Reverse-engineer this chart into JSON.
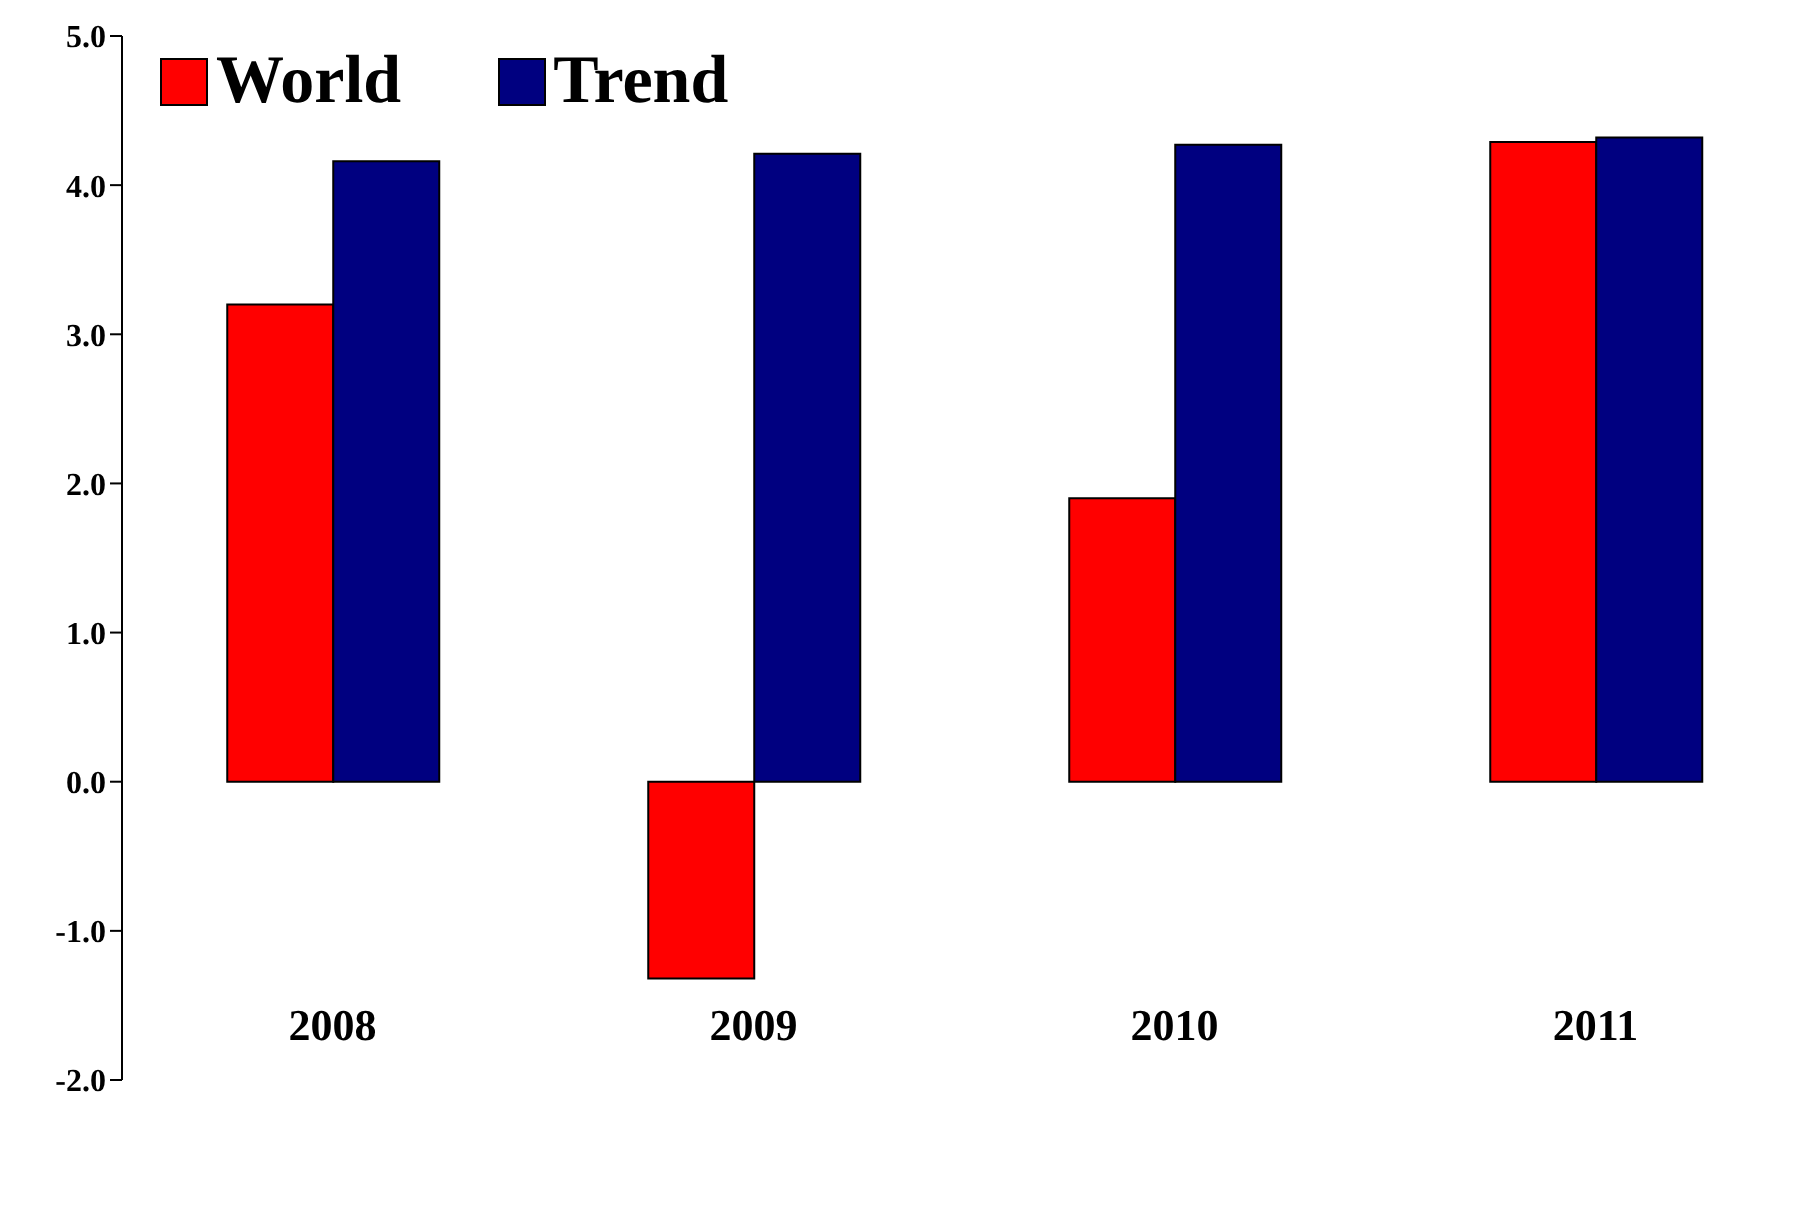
{
  "chart_data": {
    "type": "bar",
    "categories": [
      "2008",
      "2009",
      "2010",
      "2011"
    ],
    "series": [
      {
        "name": "World",
        "color": "#ff0000",
        "values": [
          3.2,
          -1.32,
          1.9,
          4.29
        ]
      },
      {
        "name": "Trend",
        "color": "#000080",
        "values": [
          4.16,
          4.21,
          4.27,
          4.32
        ]
      }
    ],
    "ylim": [
      -2,
      5
    ],
    "yticks": [
      {
        "value": -2,
        "label": "-2.0"
      },
      {
        "value": -1,
        "label": "-1.0"
      },
      {
        "value": 0,
        "label": "0.0"
      },
      {
        "value": 1,
        "label": "1.0"
      },
      {
        "value": 2,
        "label": "2.0"
      },
      {
        "value": 3,
        "label": "3.0"
      },
      {
        "value": 4,
        "label": "4.0"
      },
      {
        "value": 5,
        "label": "5.0"
      }
    ],
    "grid": false,
    "legend": "top left"
  }
}
